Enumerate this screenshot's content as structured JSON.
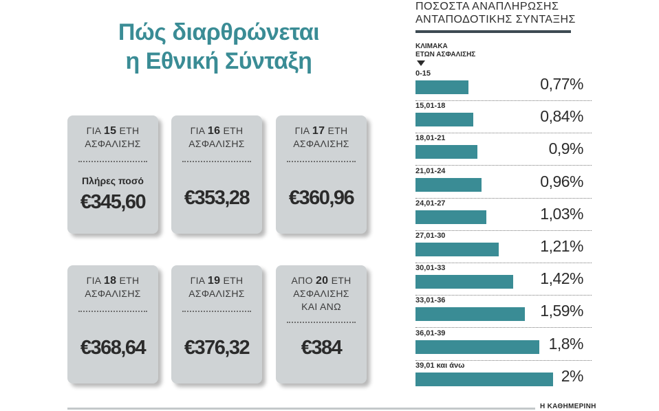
{
  "title_line1": "Πώς διαρθρώνεται",
  "title_line2": "η Εθνική Σύνταξη",
  "cards": [
    {
      "prefix": "ΓΙΑ",
      "num": "15",
      "suffix": "ΕΤΗ",
      "line2": "ΑΣΦΑΛΙΣΗΣ",
      "line3": "",
      "note": "Πλήρες ποσό",
      "amount": "€345,60"
    },
    {
      "prefix": "ΓΙΑ",
      "num": "16",
      "suffix": "ΕΤΗ",
      "line2": "ΑΣΦΑΛΙΣΗΣ",
      "line3": "",
      "note": "",
      "amount": "€353,28"
    },
    {
      "prefix": "ΓΙΑ",
      "num": "17",
      "suffix": "ΕΤΗ",
      "line2": "ΑΣΦΑΛΙΣΗΣ",
      "line3": "",
      "note": "",
      "amount": "€360,96"
    },
    {
      "prefix": "ΓΙΑ",
      "num": "18",
      "suffix": "ΕΤΗ",
      "line2": "ΑΣΦΑΛΙΣΗΣ",
      "line3": "",
      "note": "",
      "amount": "€368,64"
    },
    {
      "prefix": "ΓΙΑ",
      "num": "19",
      "suffix": "ΕΤΗ",
      "line2": "ΑΣΦΑΛΙΣΗΣ",
      "line3": "",
      "note": "",
      "amount": "€376,32"
    },
    {
      "prefix": "ΑΠΟ",
      "num": "20",
      "suffix": "ΕΤΗ",
      "line2": "ΑΣΦΑΛΙΣΗΣ",
      "line3": "ΚΑΙ ΑΝΩ",
      "note": "",
      "amount": "€384"
    }
  ],
  "panel_title_line1": "ΠΟΣΟΣΤΑ ΑΝΑΠΛΗΡΩΣΗΣ",
  "panel_title_line2": "ΑΝΤΑΠΟΔΟΤΙΚΗΣ ΣΥΝΤΑΞΗΣ",
  "category_header_line1": "ΚΛΙΜΑΚΑ",
  "category_header_line2": "ΕΤΩΝ ΑΣΦΑΛΙΣΗΣ",
  "chart_data": {
    "type": "bar",
    "orientation": "horizontal",
    "categories": [
      "0-15",
      "15,01-18",
      "18,01-21",
      "21,01-24",
      "24,01-27",
      "27,01-30",
      "30,01-33",
      "33,01-36",
      "36,01-39",
      "39,01 και άνω"
    ],
    "values": [
      0.77,
      0.84,
      0.9,
      0.96,
      1.03,
      1.21,
      1.42,
      1.59,
      1.8,
      2.0
    ],
    "value_labels": [
      "0,77%",
      "0,84%",
      "0,9%",
      "0,96%",
      "1,03%",
      "1,21%",
      "1,42%",
      "1,59%",
      "1,8%",
      "2%"
    ],
    "xlim": [
      0,
      2.0
    ],
    "bar_color": "#3a8c95"
  },
  "credit": "Η ΚΑΘΗΜΕΡΙΝΗ"
}
